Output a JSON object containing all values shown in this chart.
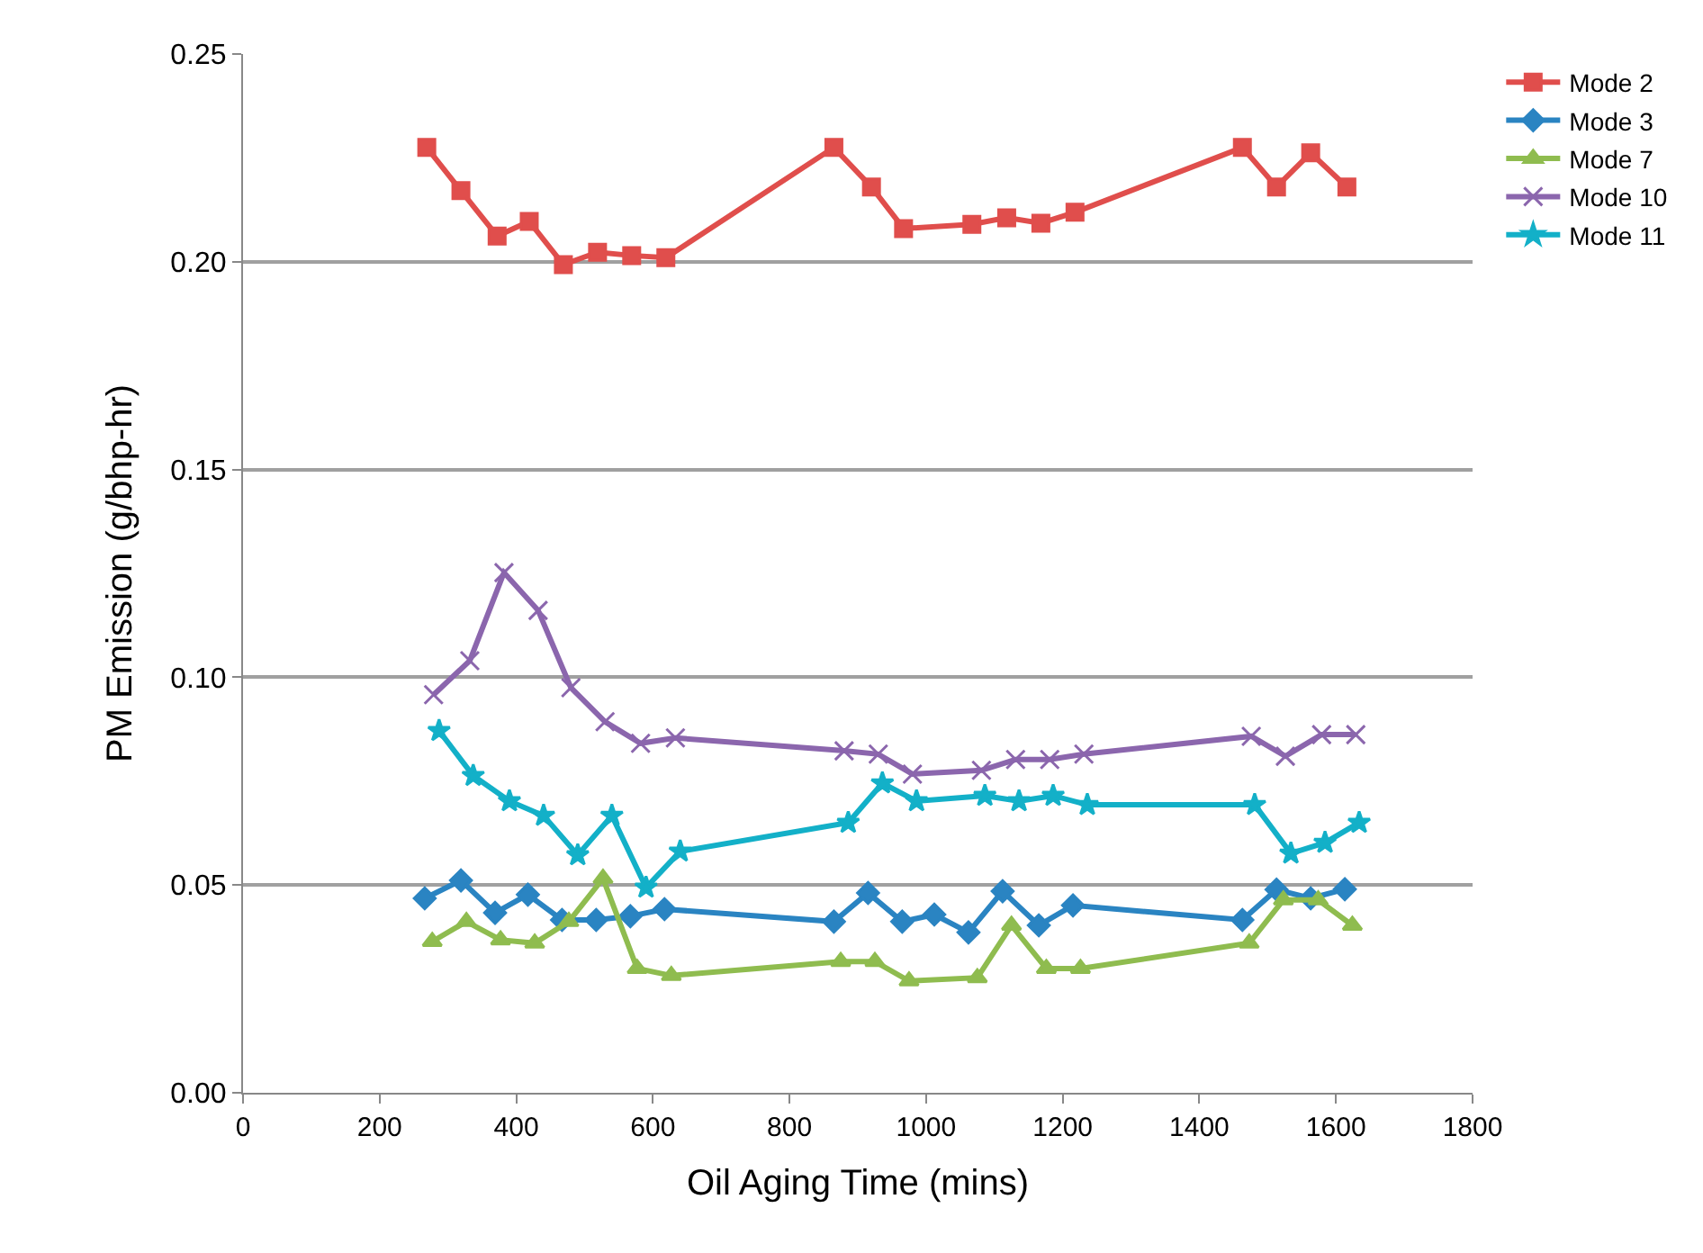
{
  "chart_data": {
    "type": "line",
    "xlabel": "Oil Aging Time (mins)",
    "ylabel": "PM Emission (g/bhp-hr)",
    "xlim": [
      0,
      1800
    ],
    "xticks": [
      0,
      200,
      400,
      600,
      800,
      1000,
      1200,
      1400,
      1600,
      1800
    ],
    "ylim": [
      0,
      0.25
    ],
    "yticks": [
      {
        "value": 0,
        "label": "0.00"
      },
      {
        "value": 0.05,
        "label": "0.05"
      },
      {
        "value": 0.1,
        "label": "0.10"
      },
      {
        "value": 0.15,
        "label": "0.15"
      },
      {
        "value": 0.2,
        "label": "0.20"
      },
      {
        "value": 0.25,
        "label": "0.25"
      }
    ],
    "grid": "y",
    "legend": "top right",
    "series": [
      {
        "name": "Mode 2",
        "color": "#e04e4c",
        "marker": "square",
        "x": [
          269,
          319,
          372,
          419,
          469,
          519,
          569,
          619,
          865,
          920,
          967,
          1067,
          1118,
          1168,
          1218,
          1463,
          1513,
          1563,
          1616
        ],
        "values": [
          0.2275,
          0.2171,
          0.2062,
          0.2097,
          0.1993,
          0.2023,
          0.2015,
          0.201,
          0.2275,
          0.218,
          0.208,
          0.209,
          0.2106,
          0.2093,
          0.2119,
          0.2275,
          0.218,
          0.2262,
          0.218
        ]
      },
      {
        "name": "Mode 3",
        "color": "#2a84c2",
        "marker": "diamond",
        "x": [
          266,
          319,
          369,
          417,
          467,
          517,
          567,
          617,
          865,
          915,
          965,
          1012,
          1062,
          1112,
          1165,
          1215,
          1463,
          1513,
          1563,
          1613
        ],
        "values": [
          0.0468,
          0.0511,
          0.0433,
          0.0477,
          0.0416,
          0.0416,
          0.0425,
          0.0442,
          0.0412,
          0.0481,
          0.0412,
          0.0429,
          0.0386,
          0.0485,
          0.0403,
          0.0451,
          0.0416,
          0.0489,
          0.0468,
          0.049
        ]
      },
      {
        "name": "Mode 7",
        "color": "#8fbc4f",
        "marker": "triangle",
        "x": [
          277,
          327,
          377,
          427,
          477,
          527,
          577,
          627,
          875,
          925,
          975,
          1075,
          1125,
          1176,
          1226,
          1473,
          1523,
          1574,
          1624
        ],
        "values": [
          0.0364,
          0.0412,
          0.0368,
          0.036,
          0.0412,
          0.0516,
          0.0299,
          0.0282,
          0.0316,
          0.0316,
          0.0269,
          0.0277,
          0.0403,
          0.0299,
          0.0299,
          0.036,
          0.0464,
          0.0464,
          0.0403
        ]
      },
      {
        "name": "Mode 10",
        "color": "#8b66ad",
        "marker": "cross",
        "x": [
          279,
          332,
          382,
          432,
          480,
          530,
          582,
          633,
          880,
          930,
          980,
          1081,
          1131,
          1181,
          1231,
          1476,
          1526,
          1579,
          1629
        ],
        "values": [
          0.0958,
          0.104,
          0.1252,
          0.1161,
          0.0975,
          0.0893,
          0.0841,
          0.0854,
          0.0823,
          0.0815,
          0.0767,
          0.0776,
          0.0802,
          0.0802,
          0.0815,
          0.0858,
          0.081,
          0.0862,
          0.0862
        ]
      },
      {
        "name": "Mode 11",
        "color": "#13b0c8",
        "marker": "star",
        "x": [
          287,
          337,
          390,
          440,
          490,
          540,
          590,
          640,
          886,
          936,
          986,
          1086,
          1136,
          1186,
          1236,
          1481,
          1534,
          1584,
          1634
        ],
        "values": [
          0.0871,
          0.0763,
          0.0702,
          0.0667,
          0.0572,
          0.0667,
          0.0494,
          0.0581,
          0.065,
          0.0745,
          0.0702,
          0.0715,
          0.0702,
          0.0715,
          0.0693,
          0.0693,
          0.0576,
          0.0602,
          0.065
        ]
      }
    ]
  }
}
